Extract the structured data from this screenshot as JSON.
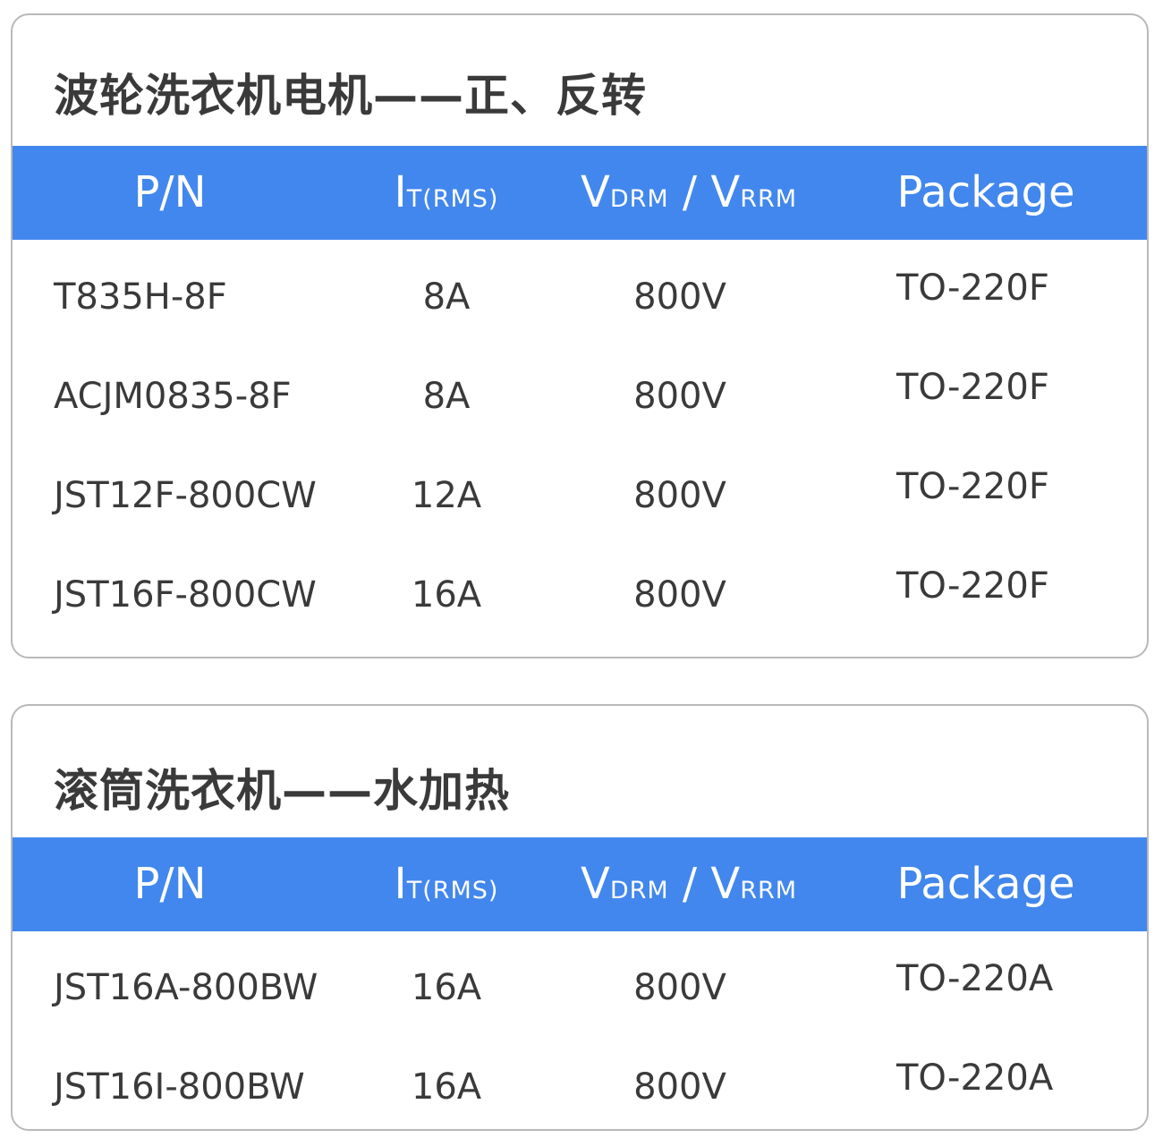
{
  "headers": {
    "pn": "P/N",
    "it_main": "I",
    "it_sub": "T(RMS)",
    "v1_main": "V",
    "v1_sub": "DRM",
    "slash": " / ",
    "v2_main": "V",
    "v2_sub": "RRM",
    "package": "Package"
  },
  "accent_color": "#4287ed",
  "tables": [
    {
      "title": "波轮洗衣机电机——正、反转",
      "rows": [
        {
          "pn": "T835H-8F",
          "current": "8A",
          "voltage": "800V",
          "package": "TO-220F"
        },
        {
          "pn": "ACJM0835-8F",
          "current": "8A",
          "voltage": "800V",
          "package": "TO-220F"
        },
        {
          "pn": "JST12F-800CW",
          "current": "12A",
          "voltage": "800V",
          "package": "TO-220F"
        },
        {
          "pn": "JST16F-800CW",
          "current": "16A",
          "voltage": "800V",
          "package": "TO-220F"
        }
      ]
    },
    {
      "title": "滚筒洗衣机——水加热",
      "rows": [
        {
          "pn": "JST16A-800BW",
          "current": "16A",
          "voltage": "800V",
          "package": "TO-220A"
        },
        {
          "pn": "JST16I-800BW",
          "current": "16A",
          "voltage": "800V",
          "package": "TO-220A"
        }
      ]
    }
  ]
}
